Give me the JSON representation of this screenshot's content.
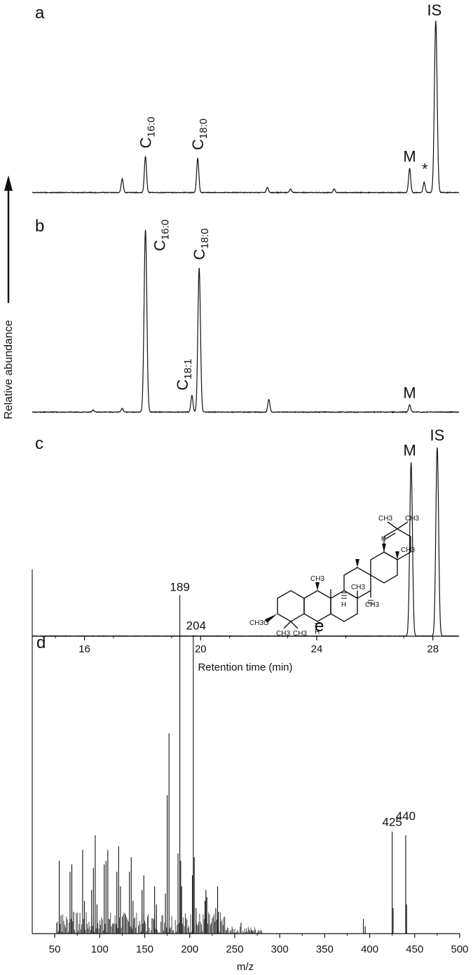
{
  "figure": {
    "ylabel_shared": "Relative abundance",
    "chromatograms_xlabel": "Retention time (min)",
    "chromatograms_xticks": [
      16,
      20,
      24,
      28
    ],
    "ms_xlabel": "m/z",
    "ms_xticks": [
      50,
      100,
      150,
      200,
      250,
      300,
      350,
      400,
      450,
      500
    ],
    "structure_panel_label": "e",
    "structure_labels": {
      "ch3_gem_a": "CH3",
      "ch3_gem_b": "CH3",
      "h_18": "H",
      "ch3_17": "CH3",
      "ch3_10": "CH3",
      "ch3_8": "CH3",
      "h_9": "H",
      "ch3_14": "CH3",
      "och3": "CH3O",
      "h_5": "H",
      "ch3_4a": "CH3",
      "ch3_4b": "CH3"
    }
  },
  "chart_data": [
    {
      "panel": "a",
      "type": "line",
      "xlabel": "Retention time (min)",
      "ylabel": "Relative abundance",
      "xlim": [
        14.2,
        28.9
      ],
      "peaks": [
        {
          "rt": 17.3,
          "height": 0.08,
          "label": ""
        },
        {
          "rt": 18.1,
          "height": 0.21,
          "label": "C16:0"
        },
        {
          "rt": 19.9,
          "height": 0.2,
          "label": "C18:0"
        },
        {
          "rt": 22.3,
          "height": 0.03,
          "label": ""
        },
        {
          "rt": 23.1,
          "height": 0.02,
          "label": ""
        },
        {
          "rt": 24.6,
          "height": 0.02,
          "label": ""
        },
        {
          "rt": 27.2,
          "height": 0.14,
          "label": "M"
        },
        {
          "rt": 27.7,
          "height": 0.06,
          "label": "*"
        },
        {
          "rt": 28.1,
          "height": 1.0,
          "label": "IS"
        }
      ]
    },
    {
      "panel": "b",
      "type": "line",
      "xlabel": "Retention time (min)",
      "ylabel": "Relative abundance",
      "xlim": [
        14.2,
        28.9
      ],
      "peaks": [
        {
          "rt": 16.3,
          "height": 0.01,
          "label": ""
        },
        {
          "rt": 17.3,
          "height": 0.02,
          "label": ""
        },
        {
          "rt": 18.1,
          "height": 1.0,
          "label": "C16:0"
        },
        {
          "rt": 19.7,
          "height": 0.09,
          "label": "C18:1"
        },
        {
          "rt": 19.95,
          "height": 0.79,
          "label": "C18:0"
        },
        {
          "rt": 22.35,
          "height": 0.07,
          "label": ""
        },
        {
          "rt": 27.2,
          "height": 0.04,
          "label": "M"
        }
      ]
    },
    {
      "panel": "c",
      "type": "line",
      "xlabel": "Retention time (min)",
      "ylabel": "Relative abundance",
      "xlim": [
        14.2,
        28.9
      ],
      "peaks": [
        {
          "rt": 27.25,
          "height": 0.92,
          "label": "M"
        },
        {
          "rt": 28.15,
          "height": 1.0,
          "label": "IS"
        }
      ]
    },
    {
      "panel": "d",
      "type": "bar",
      "xlabel": "m/z",
      "ylabel": "Relative abundance",
      "xlim": [
        25,
        500
      ],
      "ylim": [
        0,
        100
      ],
      "labeled_ions": [
        {
          "mz": 189,
          "label": "189"
        },
        {
          "mz": 204,
          "label": "204"
        },
        {
          "mz": 425,
          "label": "425"
        },
        {
          "mz": 440,
          "label": "440"
        }
      ],
      "spectrum": [
        [
          25,
          100
        ],
        [
          55,
          20
        ],
        [
          57,
          5
        ],
        [
          67,
          17
        ],
        [
          69,
          19
        ],
        [
          71,
          6
        ],
        [
          81,
          23
        ],
        [
          83,
          9
        ],
        [
          91,
          12
        ],
        [
          93,
          18
        ],
        [
          95,
          27
        ],
        [
          97,
          8
        ],
        [
          105,
          19
        ],
        [
          107,
          20
        ],
        [
          109,
          23
        ],
        [
          119,
          17
        ],
        [
          121,
          24
        ],
        [
          123,
          13
        ],
        [
          133,
          17
        ],
        [
          135,
          21
        ],
        [
          137,
          9
        ],
        [
          147,
          12
        ],
        [
          149,
          16
        ],
        [
          161,
          13
        ],
        [
          163,
          8
        ],
        [
          173,
          11
        ],
        [
          175,
          38
        ],
        [
          177,
          55
        ],
        [
          187,
          22
        ],
        [
          189,
          93
        ],
        [
          190,
          20
        ],
        [
          191,
          13
        ],
        [
          203,
          16
        ],
        [
          204,
          82
        ],
        [
          205,
          21
        ],
        [
          207,
          7
        ],
        [
          217,
          9
        ],
        [
          218,
          12
        ],
        [
          219,
          10
        ],
        [
          229,
          7
        ],
        [
          231,
          13
        ],
        [
          232,
          6
        ],
        [
          257,
          3
        ],
        [
          269,
          1
        ],
        [
          393,
          4
        ],
        [
          395,
          2
        ],
        [
          425,
          28
        ],
        [
          426,
          7
        ],
        [
          440,
          27
        ],
        [
          441,
          8
        ]
      ]
    }
  ]
}
